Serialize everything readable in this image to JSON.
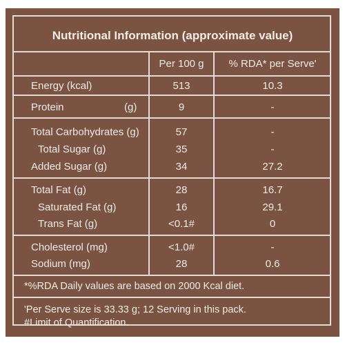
{
  "title": "Nutritional Information (approximate value)",
  "headers": {
    "per100": "Per 100 g",
    "rda": "% RDA* per Serve'"
  },
  "rows": {
    "energy": {
      "label": "Energy (kcal)",
      "per100": "513",
      "rda": "10.3"
    },
    "protein": {
      "label": "Protein",
      "unit": "(g)",
      "per100": "9",
      "rda": "-"
    },
    "carbs": {
      "label": "Total Carbohydrates (g)",
      "per100": "57",
      "rda": "-"
    },
    "sugar": {
      "label": "Total Sugar (g)",
      "per100": "35",
      "rda": "-"
    },
    "added_sugar": {
      "label": "Added Sugar (g)",
      "per100": "34",
      "rda": "27.2"
    },
    "fat": {
      "label": "Total Fat (g)",
      "per100": "28",
      "rda": "16.7"
    },
    "sat_fat": {
      "label": "Saturated Fat (g)",
      "per100": "16",
      "rda": "29.1"
    },
    "trans_fat": {
      "label": "Trans Fat (g)",
      "per100": "<0.1#",
      "rda": "0"
    },
    "cholesterol": {
      "label": "Cholesterol (mg)",
      "per100": "<1.0#",
      "rda": "-"
    },
    "sodium": {
      "label": "Sodium (mg)",
      "per100": "28",
      "rda": "0.6"
    }
  },
  "footnotes": {
    "rda_note": "*%RDA Daily values are based on 2000 Kcal diet.",
    "serve_note": "'Per Serve size is 33.33 g; 12 Serving in this pack.",
    "limit_note": "#Limit of Quantification."
  }
}
